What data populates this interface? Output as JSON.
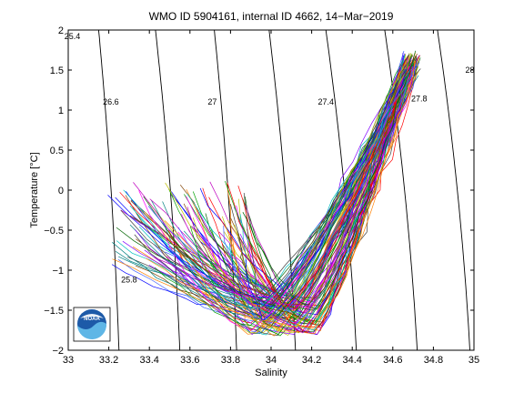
{
  "chart_data": {
    "type": "line",
    "title": "WMO ID 5904161, internal ID 4662, 14−Mar−2019",
    "xlabel": "Salinity",
    "ylabel": "Temperature [°C]",
    "xlim": [
      33,
      35
    ],
    "ylim": [
      -2,
      2
    ],
    "x_ticks": [
      "33",
      "33.2",
      "33.4",
      "33.6",
      "33.8",
      "34",
      "34.2",
      "34.4",
      "34.6",
      "34.8",
      "35"
    ],
    "y_ticks": [
      "−2",
      "−1.5",
      "−1",
      "−0.5",
      "0",
      "0.5",
      "1",
      "1.5",
      "2"
    ],
    "grid": false,
    "legend": "none",
    "isopycnals": [
      {
        "sigma": "25.4",
        "label_at": [
          33.02,
          1.92
        ]
      },
      {
        "sigma": "25.8",
        "label_at": [
          33.3,
          -1.12
        ]
      },
      {
        "sigma": "26.2",
        "label_at": null
      },
      {
        "sigma": "26.6",
        "label_at": [
          33.21,
          1.1
        ]
      },
      {
        "sigma": "27",
        "label_at": [
          33.71,
          1.1
        ]
      },
      {
        "sigma": "27.4",
        "label_at": [
          34.27,
          1.1
        ]
      },
      {
        "sigma": "27.8",
        "label_at": [
          34.73,
          1.14
        ]
      },
      {
        "sigma": "28",
        "label_at": [
          34.98,
          1.5
        ]
      }
    ],
    "profile_envelope": {
      "surface_start_salinity_range": [
        33.2,
        33.9
      ],
      "surface_temperature_range": [
        -1.0,
        0.1
      ],
      "min_temperature": -1.83,
      "min_temperature_salinity_range": [
        33.9,
        34.25
      ],
      "max_temperature": 1.72,
      "max_temperature_salinity": 34.71,
      "profile_count_approx": 120
    },
    "annotations": {
      "logo": "NOAA"
    }
  }
}
